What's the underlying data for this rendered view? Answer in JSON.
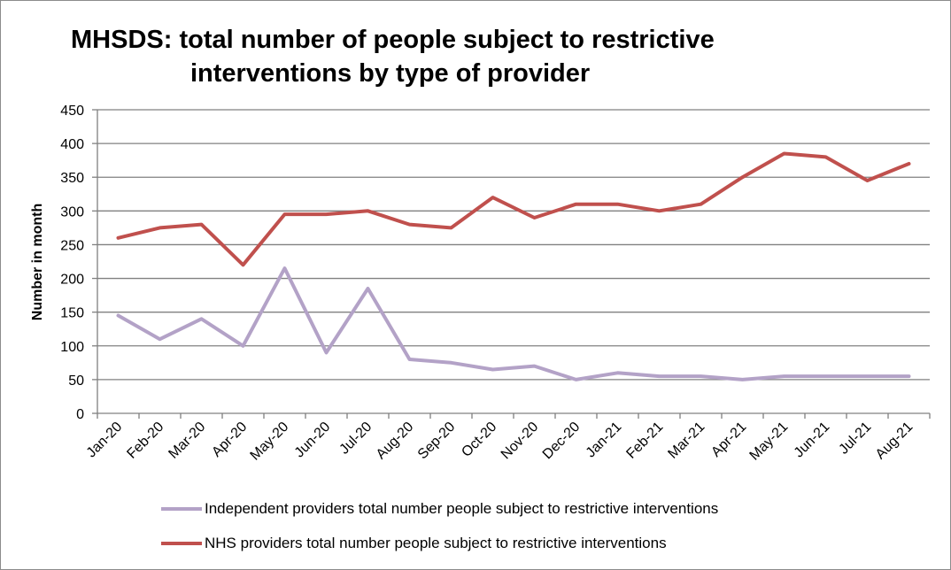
{
  "chart_data": {
    "type": "line",
    "title_line1": "MHSDS: total number of people subject to restrictive",
    "title_line2": "interventions by type of provider",
    "xlabel": "",
    "ylabel": "Number in month",
    "ylim": [
      0,
      450
    ],
    "yticks": [
      0,
      50,
      100,
      150,
      200,
      250,
      300,
      350,
      400,
      450
    ],
    "grid": true,
    "legend_position": "bottom",
    "categories": [
      "Jan-20",
      "Feb-20",
      "Mar-20",
      "Apr-20",
      "May-20",
      "Jun-20",
      "Jul-20",
      "Aug-20",
      "Sep-20",
      "Oct-20",
      "Nov-20",
      "Dec-20",
      "Jan-21",
      "Feb-21",
      "Mar-21",
      "Apr-21",
      "May-21",
      "Jun-21",
      "Jul-21",
      "Aug-21"
    ],
    "series": [
      {
        "name": "Independent providers total number people subject to restrictive interventions",
        "color": "#b3a2c7",
        "values": [
          145,
          110,
          140,
          100,
          215,
          90,
          185,
          80,
          75,
          65,
          70,
          50,
          60,
          55,
          55,
          50,
          55,
          55,
          55,
          55
        ]
      },
      {
        "name": "NHS providers total number people subject to restrictive interventions",
        "color": "#c0504d",
        "values": [
          260,
          275,
          280,
          220,
          295,
          295,
          300,
          280,
          275,
          320,
          290,
          310,
          310,
          300,
          310,
          350,
          385,
          380,
          345,
          370
        ]
      }
    ]
  }
}
